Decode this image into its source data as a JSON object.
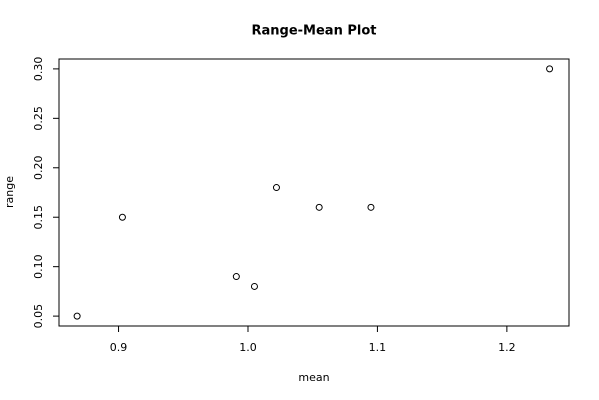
{
  "chart_data": {
    "type": "scatter",
    "title": "Range-Mean Plot",
    "x_label": "mean",
    "y_label": "range",
    "series": [
      {
        "color": "#000000",
        "x": [
          0.868,
          0.903,
          0.991,
          1.005,
          1.022,
          1.055,
          1.095,
          1.233
        ],
        "values": [
          0.05,
          0.15,
          0.09,
          0.08,
          0.18,
          0.16,
          0.16,
          0.3
        ]
      }
    ],
    "xlim": [
      0.854,
      1.248
    ],
    "ylim": [
      0.04,
      0.31
    ],
    "xticks": [
      0.9,
      {
        "value": 1.0,
        "label": "1.0"
      },
      1.1,
      1.2
    ],
    "yticks": [
      0.05,
      {
        "value": 0.1,
        "label": "0.10"
      },
      0.15,
      {
        "value": 0.2,
        "label": "0.20"
      },
      0.25,
      {
        "value": 0.3,
        "label": "0.30"
      }
    ]
  }
}
